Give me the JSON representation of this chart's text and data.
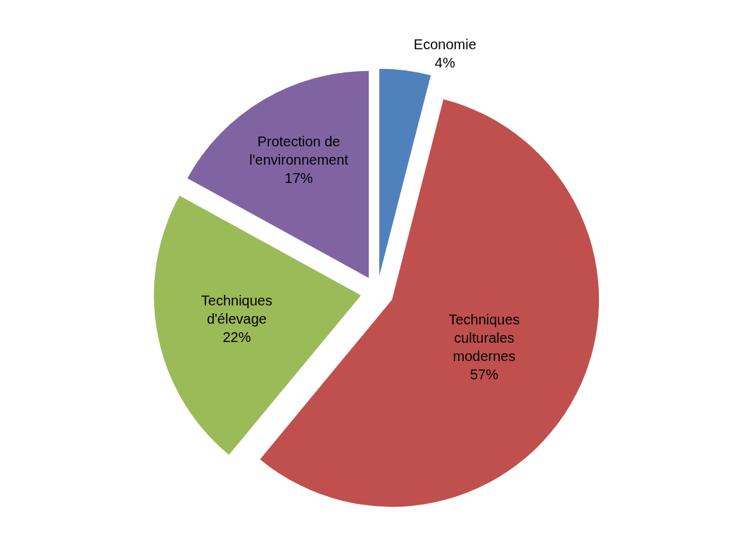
{
  "chart_data": {
    "type": "pie",
    "categories": [
      "Economie",
      "Techniques culturales modernes",
      "Techniques d'élevage",
      "Protection de l'environnement"
    ],
    "values": [
      4,
      57,
      22,
      17
    ],
    "value_labels": [
      "4%",
      "57%",
      "22%",
      "17%"
    ],
    "colors": [
      "#4f81bd",
      "#c0504d",
      "#9bbb59",
      "#8064a2"
    ],
    "legend": false
  }
}
